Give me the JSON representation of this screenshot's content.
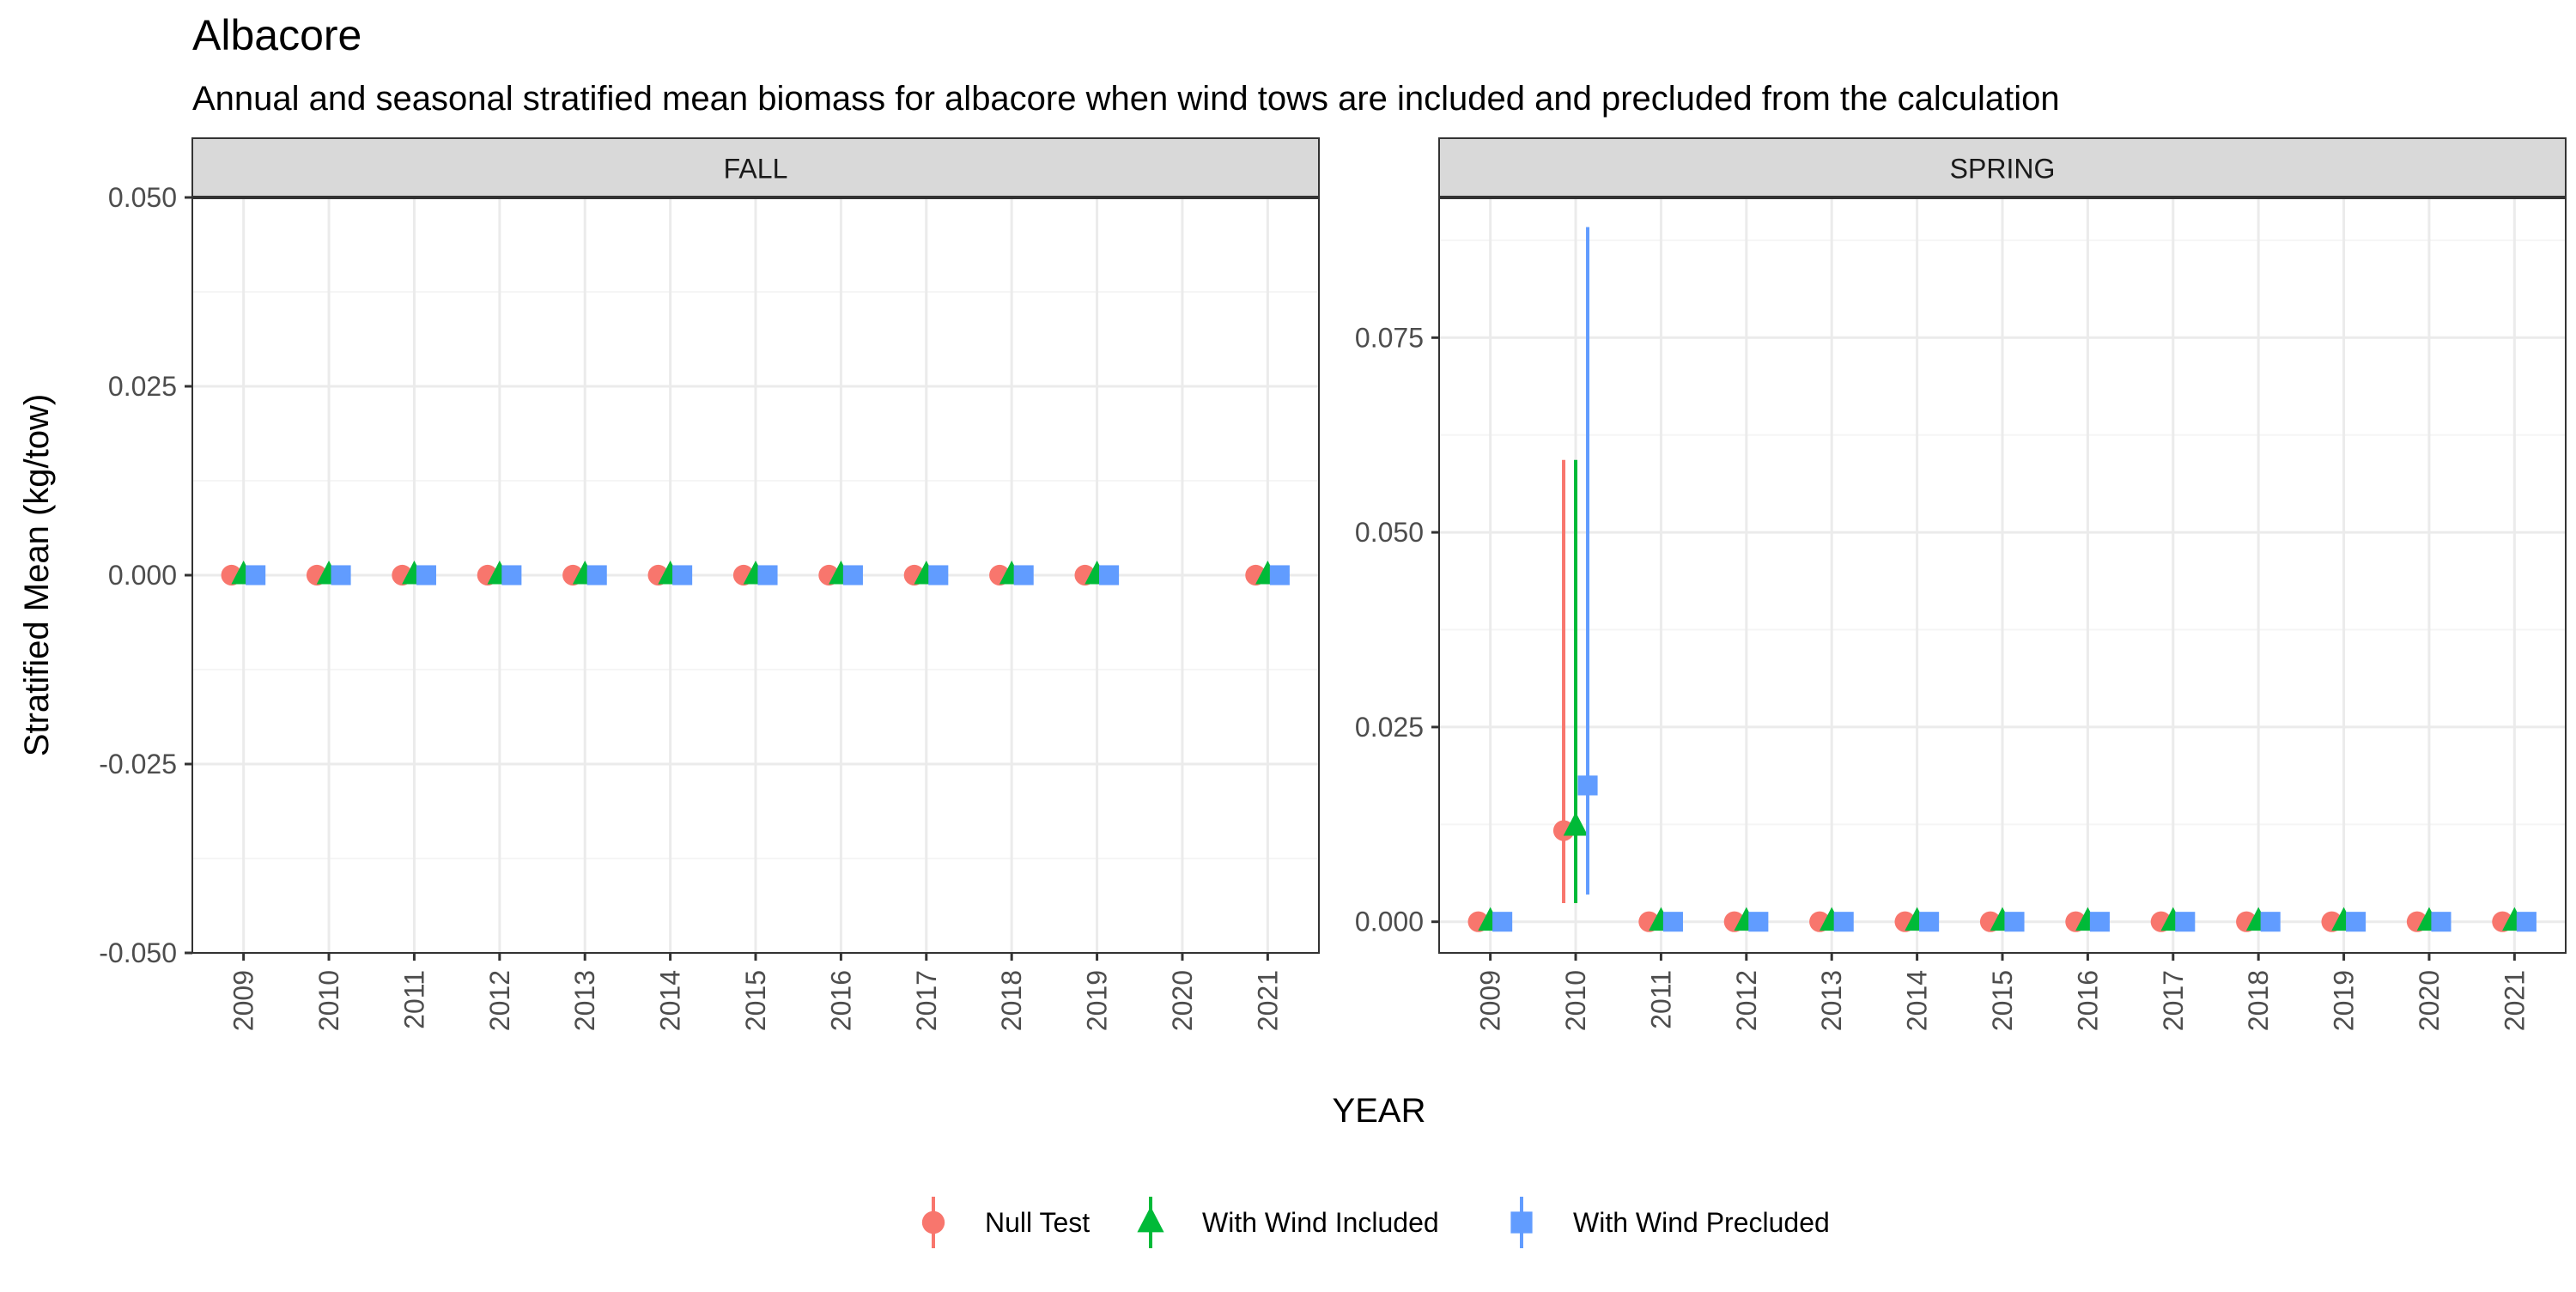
{
  "title": "Albacore",
  "subtitle": "Annual and seasonal stratified mean biomass for albacore when wind tows are included and precluded from the calculation",
  "colors": {
    "null_test": "#F8766D",
    "with_wind_included": "#00BA38",
    "with_wind_precluded": "#619CFF",
    "strip_fill": "#D9D9D9",
    "grid_major": "#EBEBEB",
    "grid_minor": "#F5F5F5",
    "panel_border": "#333333",
    "text": "#000000",
    "tick_text": "#4D4D4D"
  },
  "legend": {
    "position": "bottom",
    "items": [
      {
        "label": "Null Test",
        "shape": "circle",
        "color_key": "null_test"
      },
      {
        "label": "With Wind Included",
        "shape": "triangle",
        "color_key": "with_wind_included"
      },
      {
        "label": "With Wind Precluded",
        "shape": "square",
        "color_key": "with_wind_precluded"
      }
    ]
  },
  "chart_data": {
    "type": "scatter",
    "subtype": "faceted point-range (points with error bars)",
    "title": "Albacore",
    "subtitle": "Annual and seasonal stratified mean biomass for albacore when wind tows are included and precluded from the calculation",
    "xlabel": "YEAR",
    "ylabel": "Stratified Mean (kg/tow)",
    "x_categories": [
      "2009",
      "2010",
      "2011",
      "2012",
      "2013",
      "2014",
      "2015",
      "2016",
      "2017",
      "2018",
      "2019",
      "2020",
      "2021"
    ],
    "grid": true,
    "legend_position": "bottom",
    "facets": [
      {
        "label": "FALL",
        "ylim": [
          -0.05,
          0.05
        ],
        "yticks": [
          -0.05,
          -0.025,
          0,
          0.025,
          0.05
        ],
        "ytick_labels": [
          "-0.050",
          "-0.025",
          "0.000",
          "0.025",
          "0.050"
        ],
        "x_tick_labels": [
          "2009",
          "2010",
          "2011",
          "2012",
          "2013",
          "2014",
          "2015",
          "2016",
          "2017",
          "2018",
          "2019",
          "2020",
          "2021"
        ],
        "series": [
          {
            "name": "Null Test",
            "points": [
              {
                "x": "2009",
                "y": 0
              },
              {
                "x": "2010",
                "y": 0
              },
              {
                "x": "2011",
                "y": 0
              },
              {
                "x": "2012",
                "y": 0
              },
              {
                "x": "2013",
                "y": 0
              },
              {
                "x": "2014",
                "y": 0
              },
              {
                "x": "2015",
                "y": 0
              },
              {
                "x": "2016",
                "y": 0
              },
              {
                "x": "2017",
                "y": 0
              },
              {
                "x": "2018",
                "y": 0
              },
              {
                "x": "2019",
                "y": 0
              },
              {
                "x": "2021",
                "y": 0
              }
            ]
          },
          {
            "name": "With Wind Included",
            "points": [
              {
                "x": "2009",
                "y": 0
              },
              {
                "x": "2010",
                "y": 0
              },
              {
                "x": "2011",
                "y": 0
              },
              {
                "x": "2012",
                "y": 0
              },
              {
                "x": "2013",
                "y": 0
              },
              {
                "x": "2014",
                "y": 0
              },
              {
                "x": "2015",
                "y": 0
              },
              {
                "x": "2016",
                "y": 0
              },
              {
                "x": "2017",
                "y": 0
              },
              {
                "x": "2018",
                "y": 0
              },
              {
                "x": "2019",
                "y": 0
              },
              {
                "x": "2021",
                "y": 0
              }
            ]
          },
          {
            "name": "With Wind Precluded",
            "points": [
              {
                "x": "2009",
                "y": 0
              },
              {
                "x": "2010",
                "y": 0
              },
              {
                "x": "2011",
                "y": 0
              },
              {
                "x": "2012",
                "y": 0
              },
              {
                "x": "2013",
                "y": 0
              },
              {
                "x": "2014",
                "y": 0
              },
              {
                "x": "2015",
                "y": 0
              },
              {
                "x": "2016",
                "y": 0
              },
              {
                "x": "2017",
                "y": 0
              },
              {
                "x": "2018",
                "y": 0
              },
              {
                "x": "2019",
                "y": 0
              },
              {
                "x": "2021",
                "y": 0
              }
            ]
          }
        ]
      },
      {
        "label": "SPRING",
        "ylim": [
          -0.004,
          0.093
        ],
        "yticks": [
          0,
          0.025,
          0.05,
          0.075
        ],
        "ytick_labels": [
          "0.000",
          "0.025",
          "0.050",
          "0.075"
        ],
        "x_tick_labels": [
          "2009",
          "2010",
          "2011",
          "2012",
          "2013",
          "2014",
          "2015",
          "2016",
          "2017",
          "2018",
          "2019",
          "2020",
          "2021"
        ],
        "series": [
          {
            "name": "Null Test",
            "points": [
              {
                "x": "2009",
                "y": 0
              },
              {
                "x": "2010",
                "y": 0.0117,
                "ymin": 0.0024,
                "ymax": 0.0593
              },
              {
                "x": "2011",
                "y": 0
              },
              {
                "x": "2012",
                "y": 0
              },
              {
                "x": "2013",
                "y": 0
              },
              {
                "x": "2014",
                "y": 0
              },
              {
                "x": "2015",
                "y": 0
              },
              {
                "x": "2016",
                "y": 0
              },
              {
                "x": "2017",
                "y": 0
              },
              {
                "x": "2018",
                "y": 0
              },
              {
                "x": "2019",
                "y": 0
              },
              {
                "x": "2020",
                "y": 0
              },
              {
                "x": "2021",
                "y": 0
              }
            ]
          },
          {
            "name": "With Wind Included",
            "points": [
              {
                "x": "2009",
                "y": 0
              },
              {
                "x": "2010",
                "y": 0.0122,
                "ymin": 0.0024,
                "ymax": 0.0593
              },
              {
                "x": "2011",
                "y": 0
              },
              {
                "x": "2012",
                "y": 0
              },
              {
                "x": "2013",
                "y": 0
              },
              {
                "x": "2014",
                "y": 0
              },
              {
                "x": "2015",
                "y": 0
              },
              {
                "x": "2016",
                "y": 0
              },
              {
                "x": "2017",
                "y": 0
              },
              {
                "x": "2018",
                "y": 0
              },
              {
                "x": "2019",
                "y": 0
              },
              {
                "x": "2020",
                "y": 0
              },
              {
                "x": "2021",
                "y": 0
              }
            ]
          },
          {
            "name": "With Wind Precluded",
            "points": [
              {
                "x": "2009",
                "y": 0
              },
              {
                "x": "2010",
                "y": 0.0175,
                "ymin": 0.0035,
                "ymax": 0.0892
              },
              {
                "x": "2011",
                "y": 0
              },
              {
                "x": "2012",
                "y": 0
              },
              {
                "x": "2013",
                "y": 0
              },
              {
                "x": "2014",
                "y": 0
              },
              {
                "x": "2015",
                "y": 0
              },
              {
                "x": "2016",
                "y": 0
              },
              {
                "x": "2017",
                "y": 0
              },
              {
                "x": "2018",
                "y": 0
              },
              {
                "x": "2019",
                "y": 0
              },
              {
                "x": "2020",
                "y": 0
              },
              {
                "x": "2021",
                "y": 0
              }
            ]
          }
        ]
      }
    ]
  }
}
